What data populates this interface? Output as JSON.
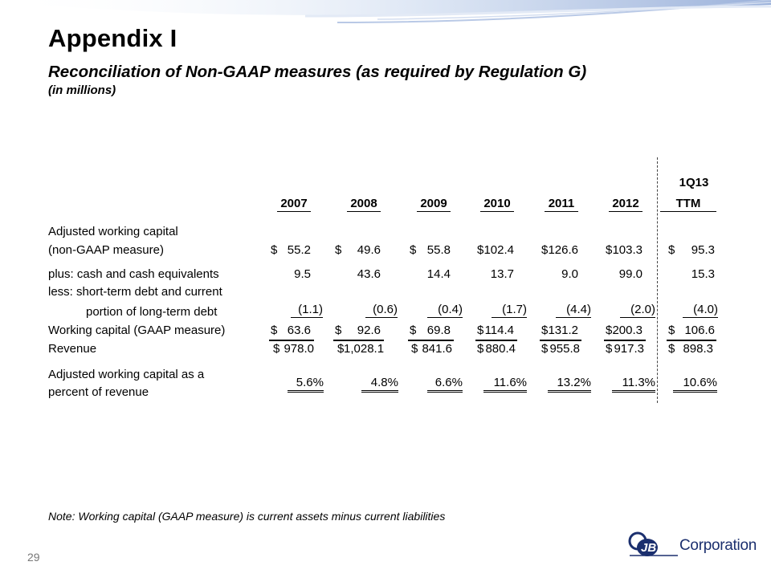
{
  "slide": {
    "title": "Appendix I",
    "subtitle": "Reconciliation of Non-GAAP measures (as required by Regulation G)",
    "units": "(in millions)",
    "note": "Note:  Working capital (GAAP measure) is current assets minus current liabilities",
    "page_number": "29"
  },
  "logo": {
    "company_text": "Corporation",
    "mark_text": "JBT"
  },
  "table": {
    "header_top": "1Q13",
    "columns": [
      "2007",
      "2008",
      "2009",
      "2010",
      "2011",
      "2012",
      "TTM"
    ],
    "row_labels": {
      "adjusted_line1": "Adjusted working capital",
      "adjusted_line2": "(non-GAAP measure)",
      "plus": "plus:  cash and cash equivalents",
      "less_line1": "less:  short-term debt and current",
      "less_line2": "portion of long-term debt",
      "working_capital": "Working capital (GAAP measure)",
      "revenue": "Revenue",
      "percent_line1": "Adjusted working capital as a",
      "percent_line2": "percent of revenue"
    },
    "currency_symbol": "$",
    "adjusted_working_capital": [
      "55.2",
      "49.6",
      "55.8",
      "102.4",
      "126.6",
      "103.3",
      "95.3"
    ],
    "cash_and_equivalents": [
      "9.5",
      "43.6",
      "14.4",
      "13.7",
      "9.0",
      "99.0",
      "15.3"
    ],
    "short_term_debt": [
      "(1.1)",
      "(0.6)",
      "(0.4)",
      "(1.7)",
      "(4.4)",
      "(2.0)",
      "(4.0)"
    ],
    "working_capital_gaap": [
      "63.6",
      "92.6",
      "69.8",
      "114.4",
      "131.2",
      "200.3",
      "106.6"
    ],
    "revenue": [
      "978.0",
      "1,028.1",
      "841.6",
      "880.4",
      "955.8",
      "917.3",
      "898.3"
    ],
    "percent_of_revenue": [
      "5.6%",
      "4.8%",
      "6.6%",
      "11.6%",
      "13.2%",
      "11.3%",
      "10.6%"
    ]
  }
}
